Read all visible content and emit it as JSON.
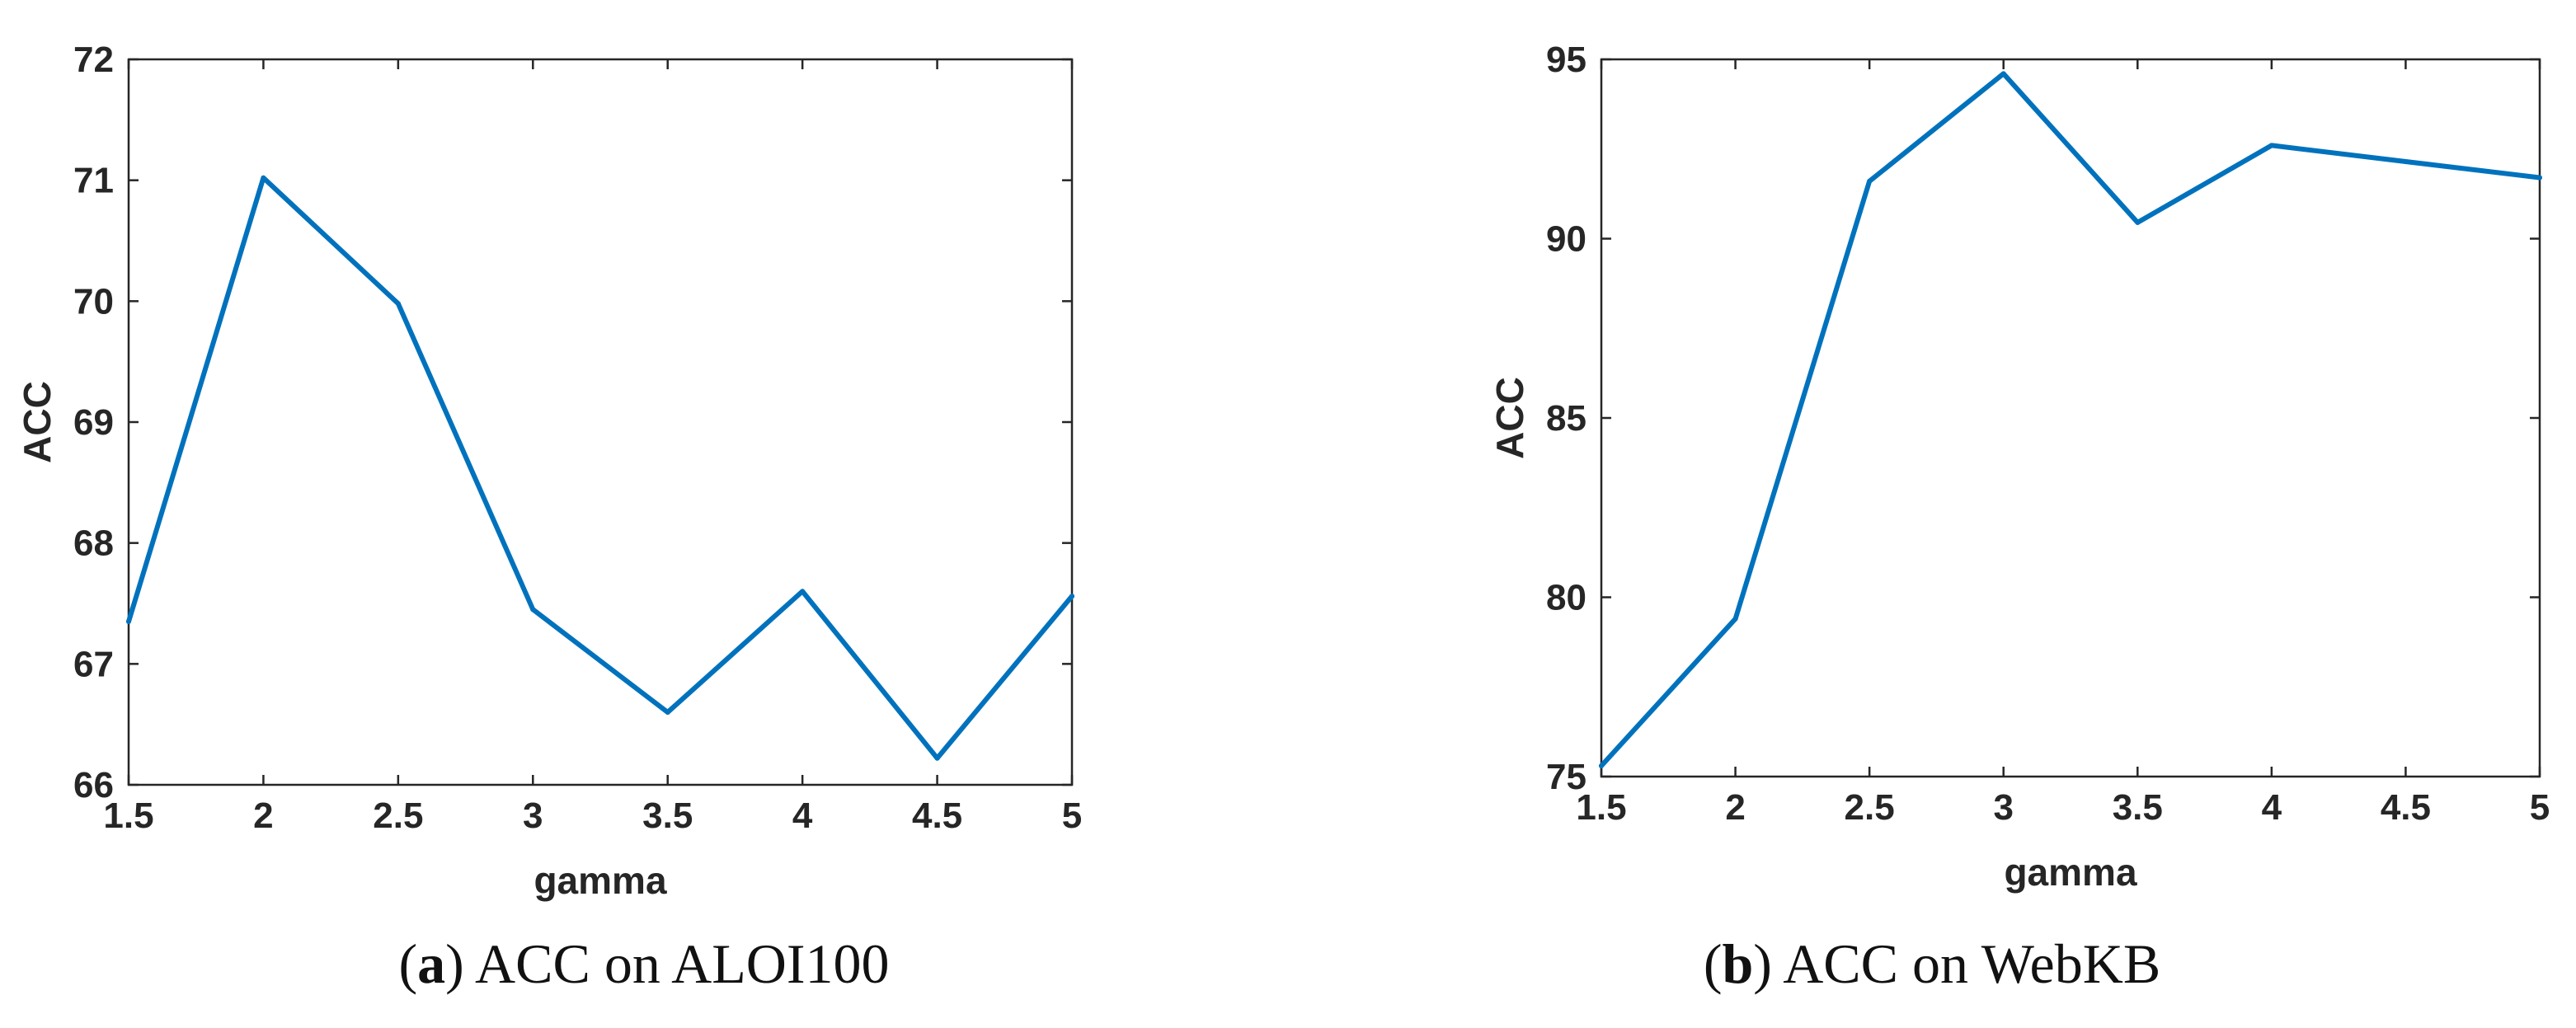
{
  "chart_data": [
    {
      "type": "line",
      "x": [
        1.5,
        2,
        2.5,
        3,
        3.5,
        4,
        4.5,
        5
      ],
      "series": [
        {
          "values": [
            67.35,
            71.02,
            69.98,
            67.45,
            66.6,
            67.6,
            66.22,
            67.56
          ],
          "color": "#0072BD"
        }
      ],
      "xlabel": "gamma",
      "ylabel": "ACC",
      "xlim": [
        1.5,
        5
      ],
      "ylim": [
        66,
        72
      ],
      "xticks": [
        "1.5",
        "2",
        "2.5",
        "3",
        "3.5",
        "4",
        "4.5",
        "5"
      ],
      "yticks": [
        "66",
        "67",
        "68",
        "69",
        "70",
        "71",
        "72"
      ],
      "grid": false,
      "caption_label": "a",
      "caption_text": "ACC on ALOI100"
    },
    {
      "type": "line",
      "x": [
        1.5,
        2,
        2.5,
        3,
        3.5,
        4,
        4.5,
        5
      ],
      "series": [
        {
          "values": [
            75.3,
            79.4,
            91.6,
            94.6,
            90.45,
            92.6,
            92.15,
            91.7
          ],
          "color": "#0072BD"
        }
      ],
      "xlabel": "gamma",
      "ylabel": "ACC",
      "xlim": [
        1.5,
        5
      ],
      "ylim": [
        75,
        95
      ],
      "xticks": [
        "1.5",
        "2",
        "2.5",
        "3",
        "3.5",
        "4",
        "4.5",
        "5"
      ],
      "yticks": [
        "75",
        "80",
        "85",
        "90",
        "95"
      ],
      "grid": false,
      "caption_label": "b",
      "caption_text": "ACC on WebKB"
    }
  ]
}
